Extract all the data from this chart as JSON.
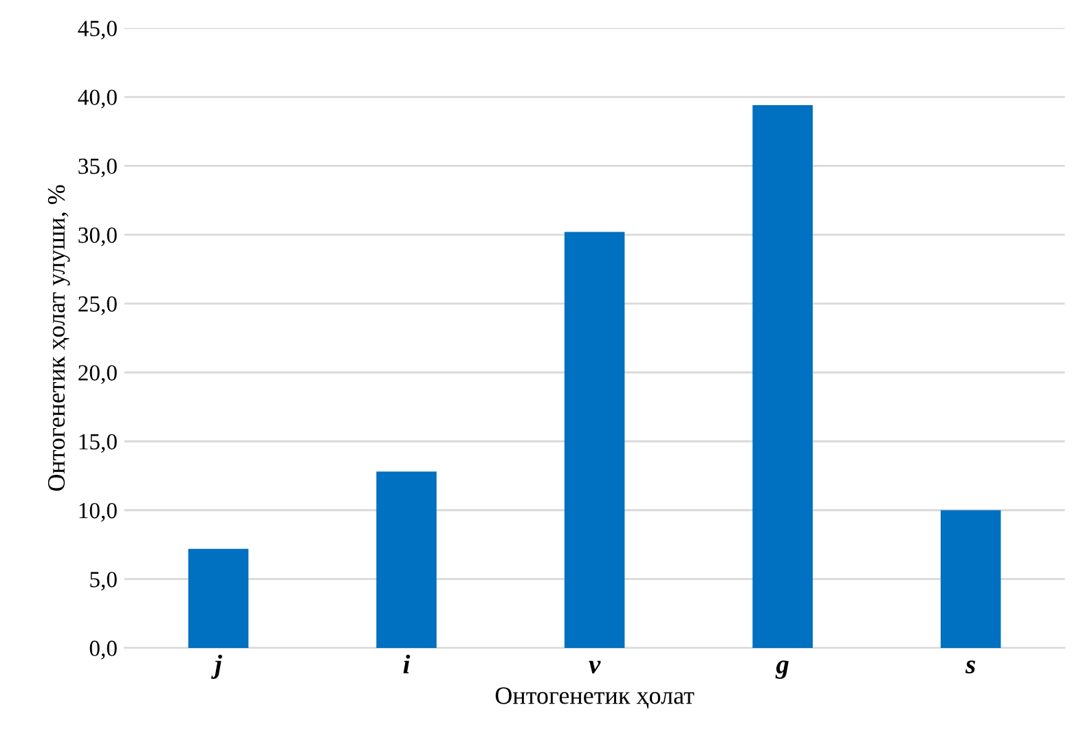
{
  "chart_data": {
    "type": "bar",
    "xlabel": "Онтогенетик ҳолат",
    "ylabel": "Онтогенетик ҳолат улуши, %",
    "categories": [
      "j",
      "i",
      "v",
      "g",
      "s"
    ],
    "values": [
      7.2,
      12.8,
      30.2,
      39.4,
      10.0
    ],
    "color": "#0070c0",
    "ylim": [
      0,
      45
    ],
    "yticks": [
      {
        "value": 0,
        "label": "0,0"
      },
      {
        "value": 5,
        "label": "5,0"
      },
      {
        "value": 10,
        "label": "10,0"
      },
      {
        "value": 15,
        "label": "15,0"
      },
      {
        "value": 20,
        "label": "20,0"
      },
      {
        "value": 25,
        "label": "25,0"
      },
      {
        "value": 30,
        "label": "30,0"
      },
      {
        "value": 35,
        "label": "35,0"
      },
      {
        "value": 40,
        "label": "40,0"
      },
      {
        "value": 45,
        "label": "45,0"
      }
    ],
    "grid": "y",
    "legend": false
  }
}
